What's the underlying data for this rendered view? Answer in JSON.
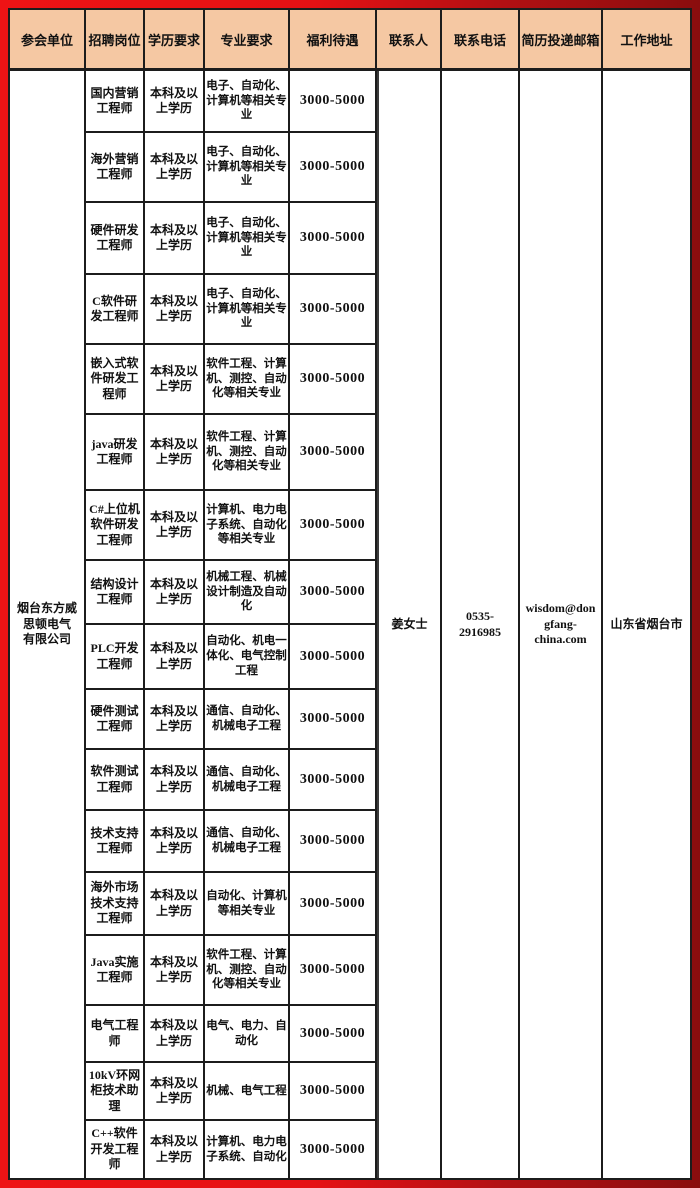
{
  "colors": {
    "frame_red_bright": "#ee1315",
    "frame_red_dark": "#8a0d0e",
    "header_bg": "#f5c8a3",
    "grid_border": "#1c1c1c",
    "text": "#111111"
  },
  "table": {
    "headers": [
      "参会单位",
      "招聘岗位",
      "学历要求",
      "专业要求",
      "福利待遇",
      "联系人",
      "联系电话",
      "简历投递邮箱",
      "工作地址"
    ],
    "company": [
      "烟台东方威",
      "思顿电气",
      "有限公司"
    ],
    "contact": {
      "person": "姜女士",
      "phone": [
        "0535-",
        "2916985"
      ],
      "email": [
        "wisdom@don",
        "gfang-",
        "china.com"
      ],
      "address": "山东省烟台市"
    },
    "rows": [
      {
        "position": "国内营销工程师",
        "education": "本科及以上学历",
        "major": "电子、自动化、计算机等相关专业",
        "salary": "3000-5000"
      },
      {
        "position": "海外营销工程师",
        "education": "本科及以上学历",
        "major": "电子、自动化、计算机等相关专业",
        "salary": "3000-5000"
      },
      {
        "position": "硬件研发工程师",
        "education": "本科及以上学历",
        "major": "电子、自动化、计算机等相关专业",
        "salary": "3000-5000"
      },
      {
        "position": "C软件研发工程师",
        "education": "本科及以上学历",
        "major": "电子、自动化、计算机等相关专业",
        "salary": "3000-5000"
      },
      {
        "position": "嵌入式软件研发工程师",
        "education": "本科及以上学历",
        "major": "软件工程、计算机、测控、自动化等相关专业",
        "salary": "3000-5000"
      },
      {
        "position": "java研发工程师",
        "education": "本科及以上学历",
        "major": "软件工程、计算机、测控、自动化等相关专业",
        "salary": "3000-5000"
      },
      {
        "position": "C#上位机软件研发工程师",
        "education": "本科及以上学历",
        "major": "计算机、电力电子系统、自动化等相关专业",
        "salary": "3000-5000"
      },
      {
        "position": "结构设计工程师",
        "education": "本科及以上学历",
        "major": "机械工程、机械设计制造及自动化",
        "salary": "3000-5000"
      },
      {
        "position": "PLC开发工程师",
        "education": "本科及以上学历",
        "major": "自动化、机电一体化、电气控制工程",
        "salary": "3000-5000"
      },
      {
        "position": "硬件测试工程师",
        "education": "本科及以上学历",
        "major": "通信、自动化、机械电子工程",
        "salary": "3000-5000"
      },
      {
        "position": "软件测试工程师",
        "education": "本科及以上学历",
        "major": "通信、自动化、机械电子工程",
        "salary": "3000-5000"
      },
      {
        "position": "技术支持工程师",
        "education": "本科及以上学历",
        "major": "通信、自动化、机械电子工程",
        "salary": "3000-5000"
      },
      {
        "position": "海外市场技术支持工程师",
        "education": "本科及以上学历",
        "major": "自动化、计算机等相关专业",
        "salary": "3000-5000"
      },
      {
        "position": "Java实施工程师",
        "education": "本科及以上学历",
        "major": "软件工程、计算机、测控、自动化等相关专业",
        "salary": "3000-5000"
      },
      {
        "position": "电气工程师",
        "education": "本科及以上学历",
        "major": "电气、电力、自动化",
        "salary": "3000-5000"
      },
      {
        "position": "10kV环网柜技术助理",
        "education": "本科及以上学历",
        "major": "机械、电气工程",
        "salary": "3000-5000"
      },
      {
        "position": "C++软件开发工程师",
        "education": "本科及以上学历",
        "major": "计算机、电力电子系统、自动化",
        "salary": "3000-5000"
      }
    ]
  }
}
